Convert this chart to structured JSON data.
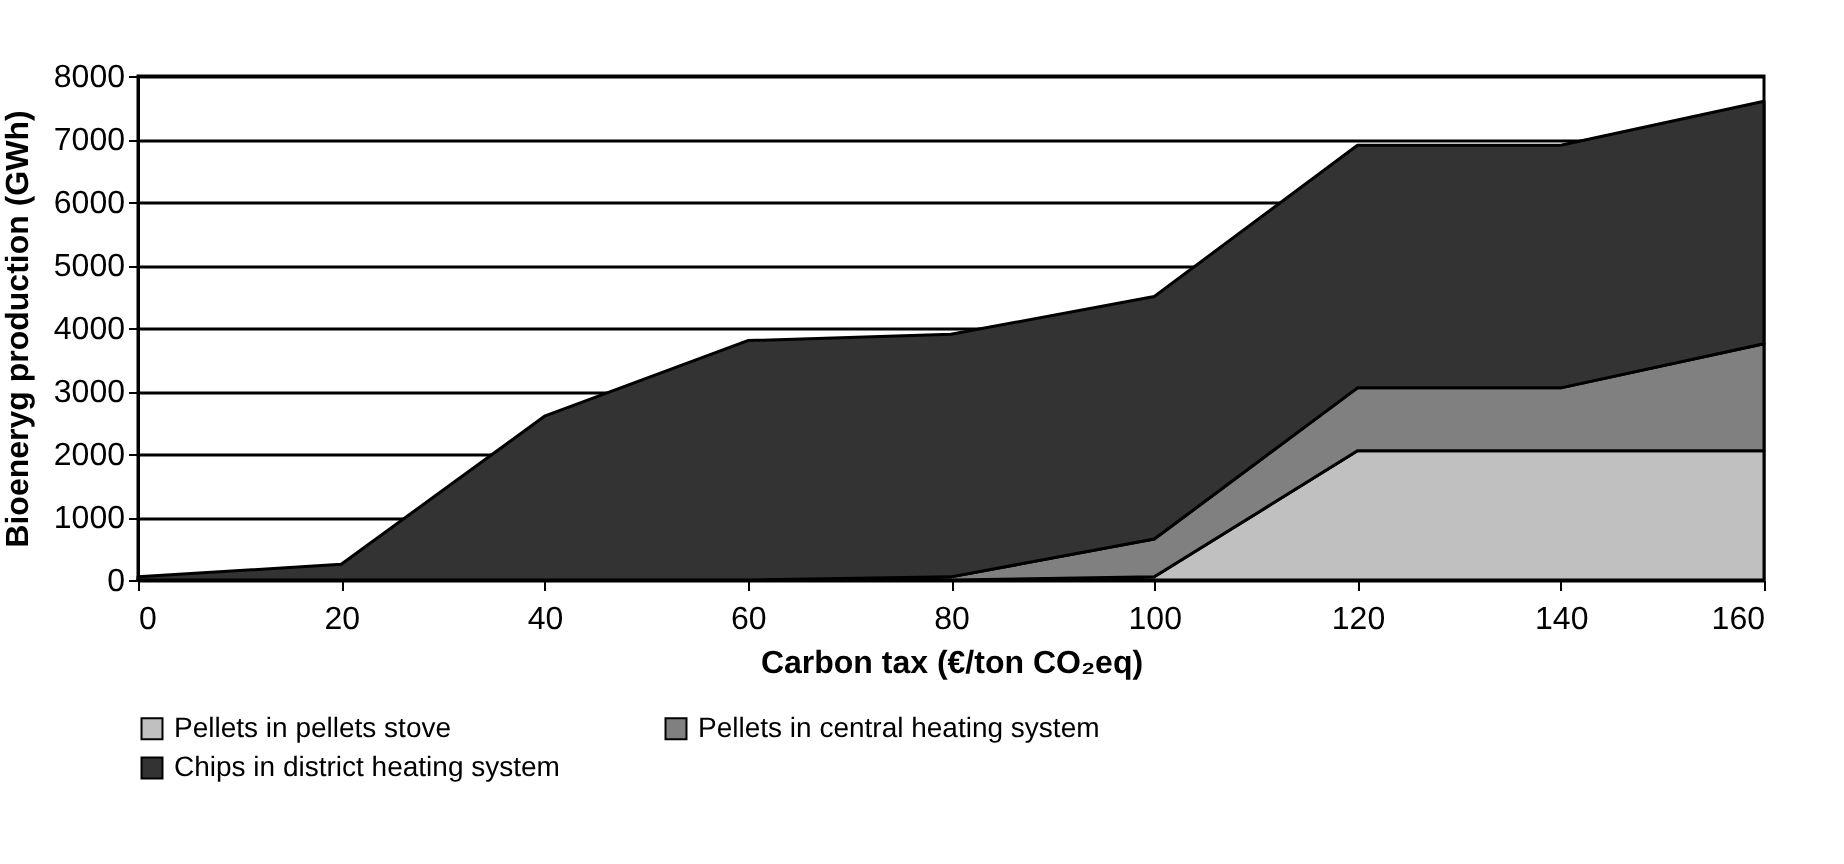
{
  "chart_data": {
    "type": "area",
    "stacked": true,
    "xlabel": "Carbon tax (€/ton CO₂eq)",
    "ylabel": "Bioeneryg production (GWh)",
    "x": [
      0,
      20,
      40,
      60,
      80,
      100,
      120,
      140,
      160
    ],
    "series": [
      {
        "name": "Pellets in pellets stove",
        "color": "#c0c0c0",
        "values": [
          0,
          0,
          0,
          0,
          0,
          50,
          2050,
          2050,
          2050
        ]
      },
      {
        "name": "Pellets in central heating system",
        "color": "#808080",
        "values": [
          0,
          0,
          0,
          0,
          50,
          600,
          1000,
          1000,
          1700
        ]
      },
      {
        "name": "Chips in district heating system",
        "color": "#333333",
        "values": [
          50,
          250,
          2600,
          3800,
          3850,
          3850,
          3850,
          3850,
          3850
        ]
      }
    ],
    "xlim": [
      0,
      160
    ],
    "xticks": [
      0,
      20,
      40,
      60,
      80,
      100,
      120,
      140,
      160
    ],
    "ylim": [
      0,
      8000
    ],
    "yticks": [
      0,
      1000,
      2000,
      3000,
      4000,
      5000,
      6000,
      7000,
      8000
    ],
    "grid": "y",
    "legend": "bottom"
  }
}
